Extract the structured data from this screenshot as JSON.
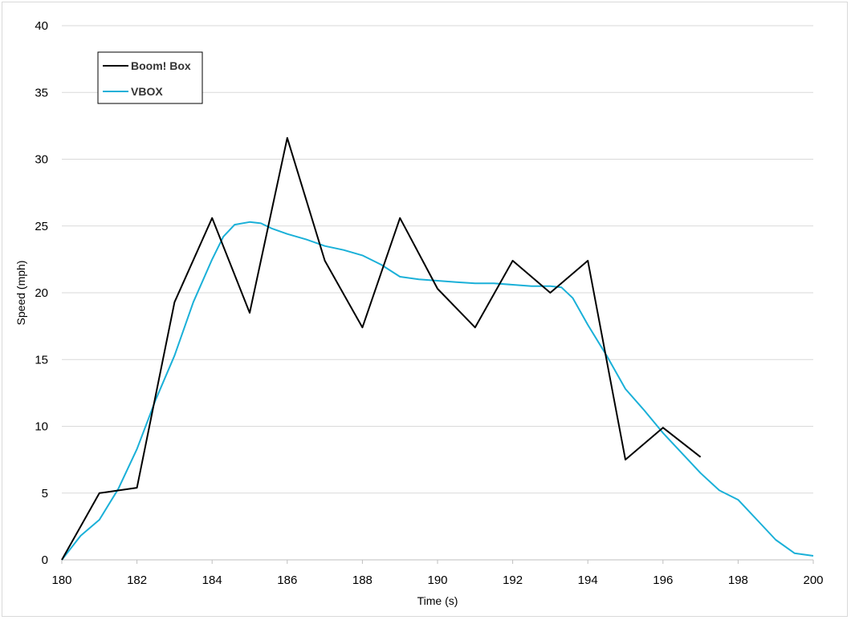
{
  "chart_data": {
    "type": "line",
    "title": "",
    "xlabel": "Time (s)",
    "ylabel": "Speed (mph)",
    "xlim": [
      180,
      200
    ],
    "ylim": [
      0,
      40
    ],
    "x_ticks": [
      180,
      182,
      184,
      186,
      188,
      190,
      192,
      194,
      196,
      198,
      200
    ],
    "y_ticks": [
      0,
      5,
      10,
      15,
      20,
      25,
      30,
      35,
      40
    ],
    "grid": "horizontal",
    "legend": {
      "position": "top-left"
    },
    "series": [
      {
        "name": "Boom! Box",
        "color": "#000000",
        "x": [
          180,
          181,
          182,
          183,
          184,
          185,
          186,
          187,
          188,
          189,
          190,
          191,
          192,
          193,
          194,
          195,
          196,
          197
        ],
        "y": [
          0.0,
          5.0,
          5.4,
          19.3,
          25.6,
          18.5,
          31.6,
          22.4,
          17.4,
          25.6,
          20.3,
          17.4,
          22.4,
          20.0,
          22.4,
          7.5,
          9.9,
          7.7
        ]
      },
      {
        "name": "VBOX",
        "color": "#1ab0d8",
        "x": [
          180,
          180.5,
          181,
          181.5,
          182,
          182.5,
          183,
          183.5,
          184,
          184.3,
          184.6,
          185,
          185.3,
          185.6,
          186,
          186.5,
          187,
          187.5,
          188,
          188.5,
          189,
          189.5,
          190,
          190.5,
          191,
          191.5,
          192,
          192.5,
          193,
          193.3,
          193.6,
          194,
          194.5,
          195,
          195.5,
          196,
          196.5,
          197,
          197.5,
          198,
          198.5,
          199,
          199.5,
          200
        ],
        "y": [
          0.0,
          1.8,
          3.0,
          5.3,
          8.3,
          12.0,
          15.3,
          19.3,
          22.5,
          24.2,
          25.1,
          25.3,
          25.2,
          24.8,
          24.4,
          24.0,
          23.5,
          23.2,
          22.8,
          22.1,
          21.2,
          21.0,
          20.9,
          20.8,
          20.7,
          20.7,
          20.6,
          20.5,
          20.5,
          20.4,
          19.6,
          17.6,
          15.3,
          12.8,
          11.2,
          9.5,
          8.0,
          6.5,
          5.2,
          4.5,
          3.0,
          1.5,
          0.5,
          0.3
        ]
      }
    ]
  }
}
